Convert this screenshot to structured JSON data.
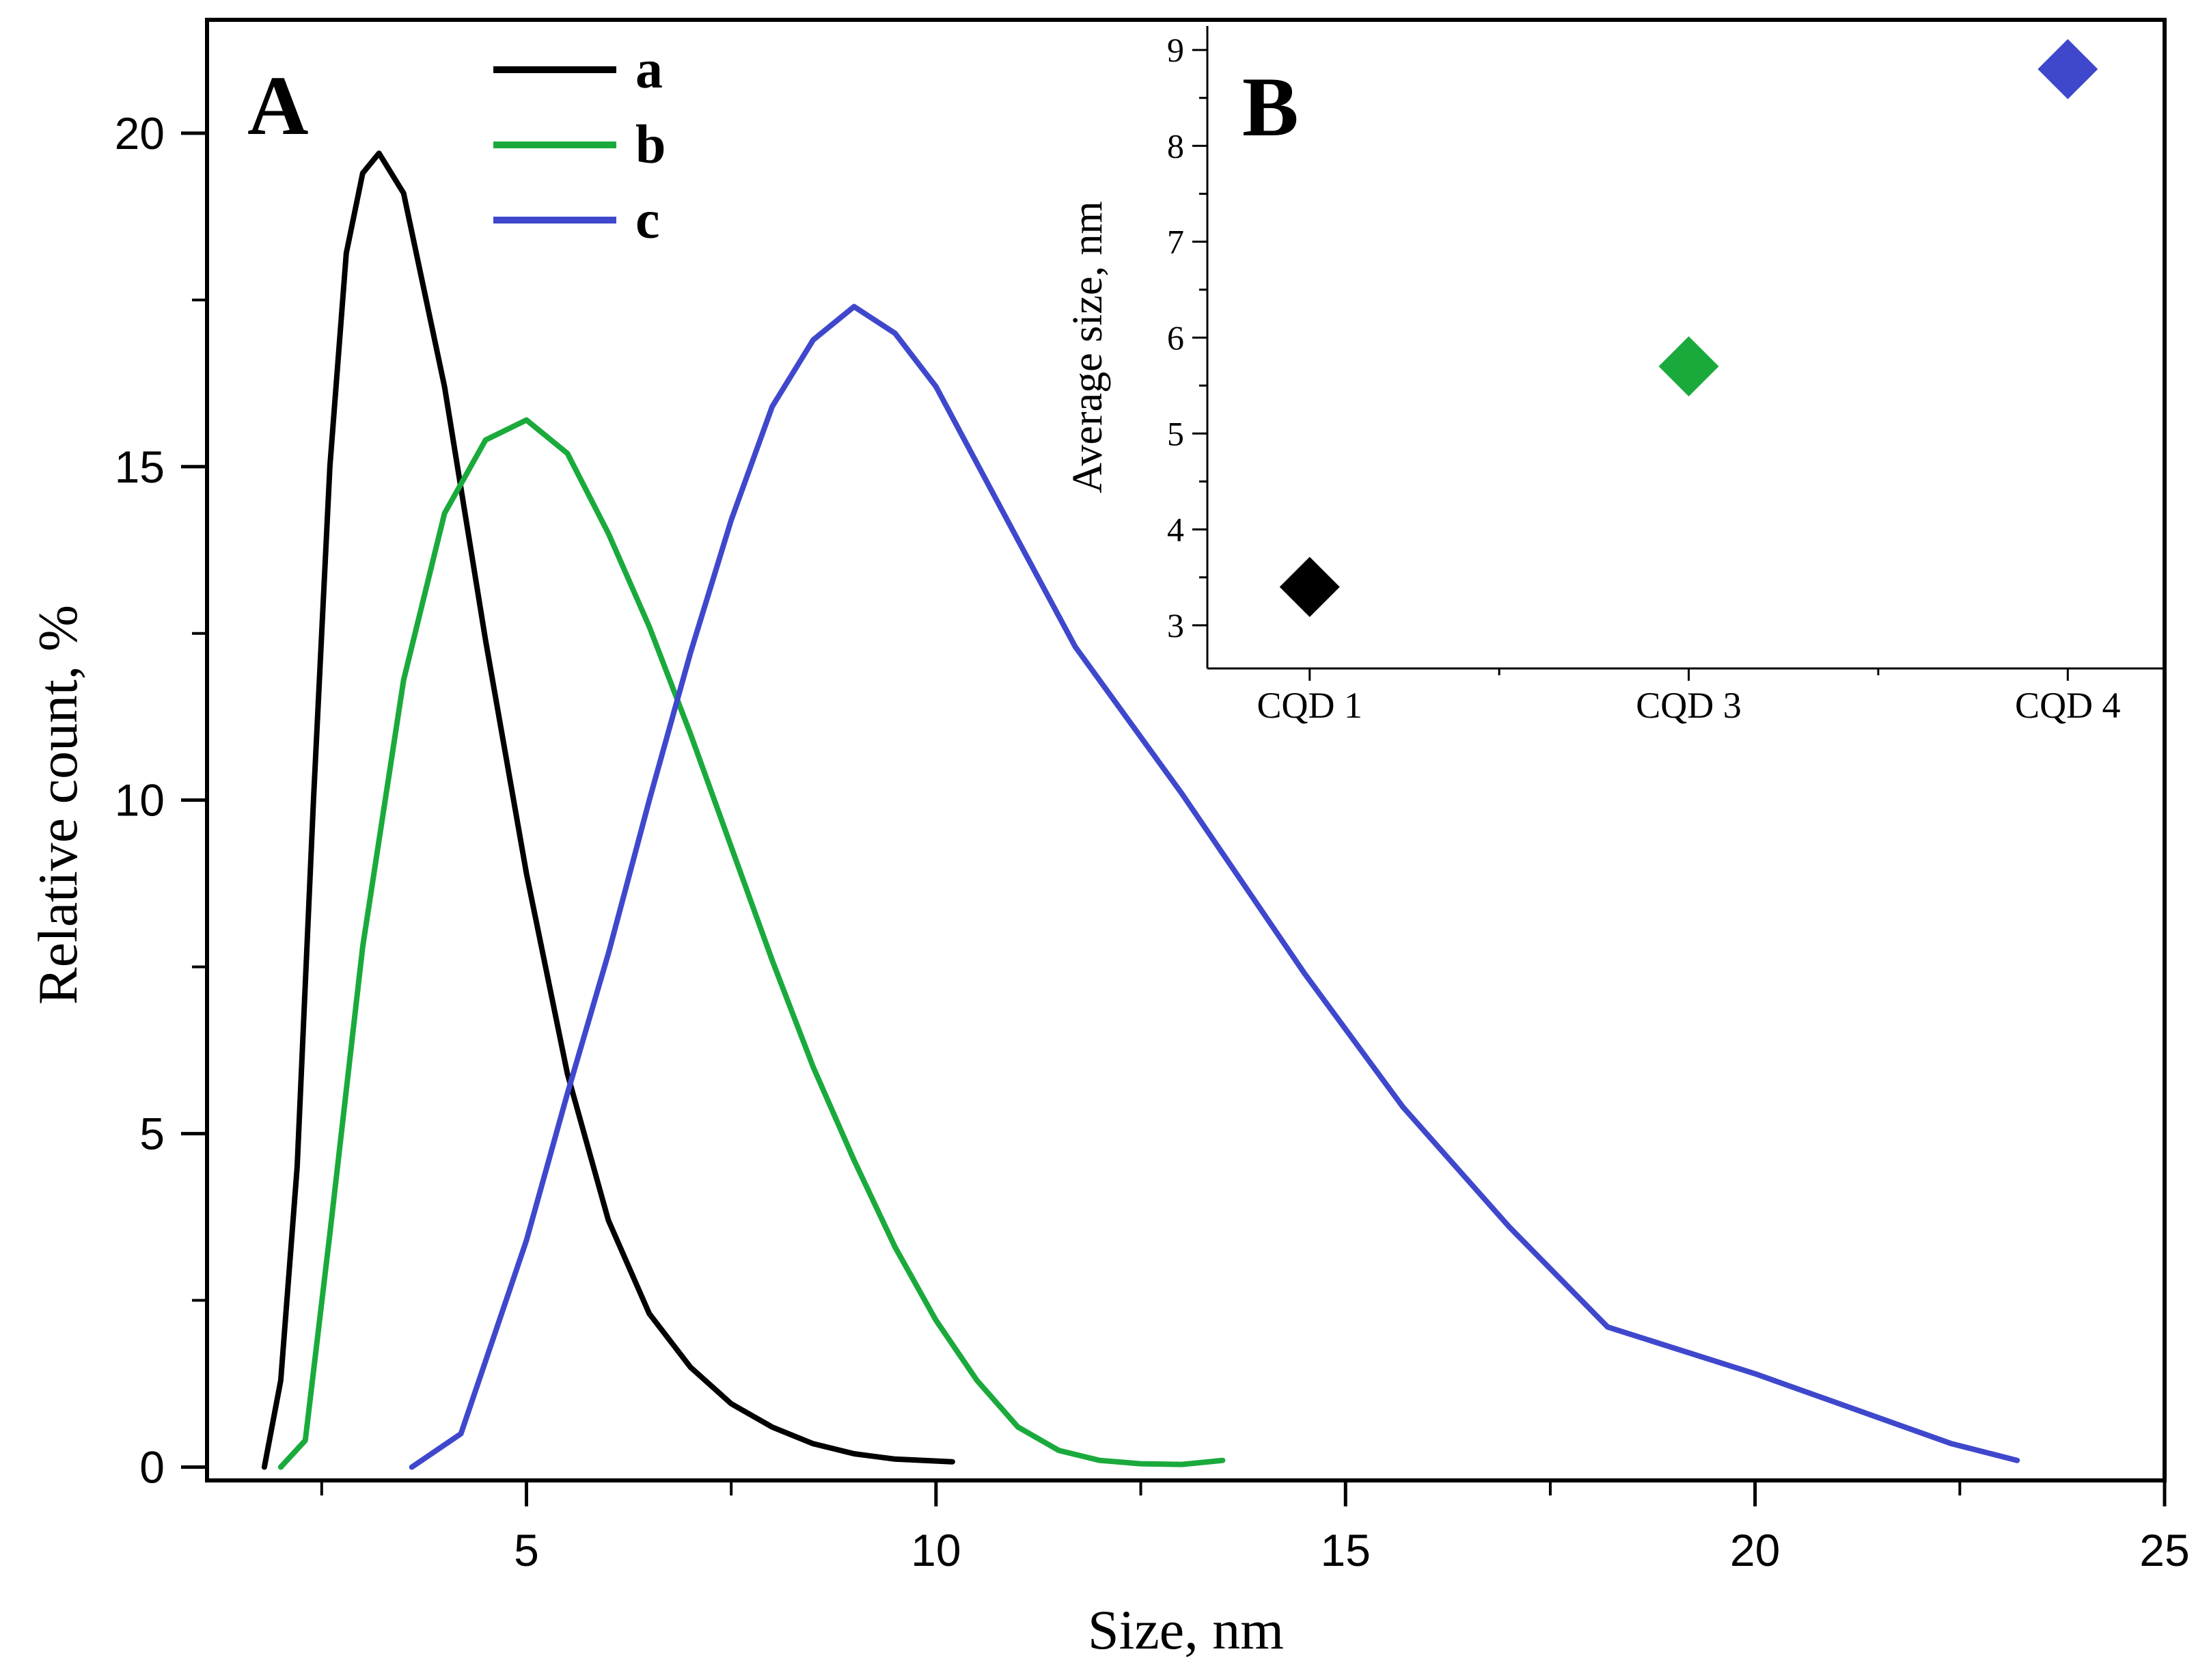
{
  "chart_data": [
    {
      "panel_label": "A",
      "type": "line",
      "xlabel": "Size, nm",
      "ylabel": "Relative count, %",
      "xlim": [
        1.1,
        25
      ],
      "ylim": [
        -0.2,
        21.7
      ],
      "x_ticks": [
        5,
        10,
        15,
        20,
        25
      ],
      "y_ticks": [
        0,
        5,
        10,
        15,
        20
      ],
      "x_tick_labels": [
        "5",
        "10",
        "15",
        "20",
        "25"
      ],
      "y_tick_labels": [
        "0",
        "5",
        "10",
        "15",
        "20"
      ],
      "series": [
        {
          "name": "a",
          "color": "#000000",
          "x": [
            1.8,
            2.0,
            2.2,
            2.4,
            2.6,
            2.8,
            3.0,
            3.2,
            3.5,
            4.0,
            4.5,
            5.0,
            5.5,
            6.0,
            6.5,
            7.0,
            7.5,
            8.0,
            8.5,
            9.0,
            9.5,
            10.2
          ],
          "y": [
            0.0,
            1.3,
            4.5,
            10.0,
            15.0,
            18.2,
            19.4,
            19.7,
            19.1,
            16.2,
            12.4,
            8.9,
            5.9,
            3.7,
            2.3,
            1.5,
            0.95,
            0.6,
            0.35,
            0.2,
            0.12,
            0.08
          ]
        },
        {
          "name": "b",
          "color": "#1aaa3c",
          "x": [
            2.0,
            2.3,
            2.6,
            3.0,
            3.5,
            4.0,
            4.5,
            5.0,
            5.5,
            6.0,
            6.5,
            7.0,
            7.5,
            8.0,
            8.5,
            9.0,
            9.5,
            10.0,
            10.5,
            11.0,
            11.5,
            12.0,
            12.5,
            13.0,
            13.5
          ],
          "y": [
            0.0,
            0.4,
            3.5,
            7.8,
            11.8,
            14.3,
            15.4,
            15.7,
            15.2,
            14.0,
            12.6,
            11.0,
            9.3,
            7.6,
            6.0,
            4.6,
            3.3,
            2.2,
            1.3,
            0.6,
            0.25,
            0.1,
            0.05,
            0.04,
            0.1
          ]
        },
        {
          "name": "c",
          "color": "#3f48cc",
          "x": [
            3.6,
            4.2,
            5.0,
            5.5,
            6.0,
            6.5,
            7.0,
            7.5,
            8.0,
            8.5,
            9.0,
            9.5,
            10.0,
            11.0,
            11.7,
            13.0,
            14.5,
            15.7,
            17.0,
            18.2,
            20.0,
            22.4,
            23.2
          ],
          "y": [
            0.0,
            0.5,
            3.4,
            5.6,
            7.7,
            10.0,
            12.2,
            14.2,
            15.9,
            16.9,
            17.4,
            17.0,
            16.2,
            13.9,
            12.3,
            10.1,
            7.4,
            5.4,
            3.6,
            2.1,
            1.4,
            0.35,
            0.1
          ]
        }
      ],
      "legend": {
        "position": "top-center",
        "entries": [
          "a",
          "b",
          "c"
        ]
      }
    },
    {
      "panel_label": "B",
      "type": "scatter",
      "xlabel": "",
      "ylabel": "Average size, nm",
      "categories": [
        "CQD 1",
        "CQD 3",
        "CQD 4"
      ],
      "x_positions": [
        1,
        2,
        3
      ],
      "xlim": [
        0.73,
        3.25
      ],
      "ylim": [
        2.55,
        9.25
      ],
      "y_ticks": [
        3,
        4,
        5,
        6,
        7,
        8,
        9
      ],
      "y_tick_labels": [
        "3",
        "4",
        "5",
        "6",
        "7",
        "8",
        "9"
      ],
      "points": [
        {
          "category": "CQD 1",
          "value": 3.4,
          "color": "#000000"
        },
        {
          "category": "CQD 3",
          "value": 5.7,
          "color": "#1aaa3c"
        },
        {
          "category": "CQD 4",
          "value": 8.8,
          "color": "#3f48cc"
        }
      ]
    }
  ]
}
